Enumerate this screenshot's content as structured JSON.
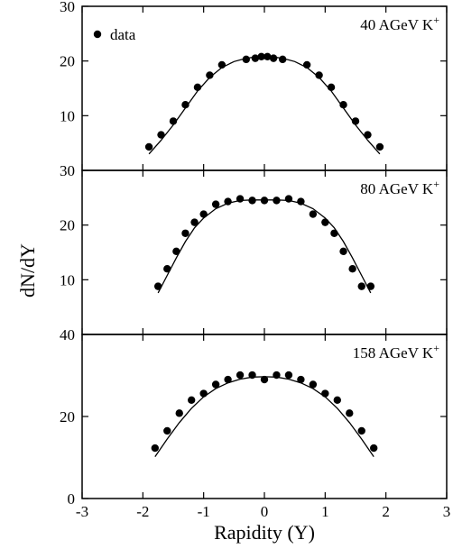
{
  "chart_data": {
    "type": "scatter",
    "xlabel": "Rapidity (Y)",
    "ylabel": "dN/dY",
    "xlim": [
      -3,
      3
    ],
    "x_ticks": [
      -3,
      -2,
      -1,
      0,
      1,
      2,
      3
    ],
    "grid": false,
    "legend": {
      "position": "top-left",
      "entries": [
        {
          "label": "data",
          "marker": "filled-circle"
        }
      ]
    },
    "panels": [
      {
        "label": "40 AGeV K",
        "label_sup": "+",
        "ylim": [
          0,
          30
        ],
        "y_ticks": [
          10,
          20,
          30
        ],
        "series": [
          {
            "kind": "points",
            "x": [
              -1.9,
              -1.7,
              -1.5,
              -1.3,
              -1.1,
              -0.9,
              -0.7,
              -0.3,
              -0.15,
              -0.05,
              0.05,
              0.15,
              0.3,
              0.7,
              0.9,
              1.1,
              1.3,
              1.5,
              1.7,
              1.9
            ],
            "y": [
              4.3,
              6.5,
              9.0,
              12.0,
              15.2,
              17.4,
              19.3,
              20.3,
              20.5,
              20.8,
              20.8,
              20.5,
              20.3,
              19.3,
              17.4,
              15.2,
              12.0,
              9.0,
              6.5,
              4.3
            ]
          },
          {
            "kind": "line",
            "x": [
              -1.9,
              -1.7,
              -1.5,
              -1.3,
              -1.1,
              -0.9,
              -0.7,
              -0.5,
              -0.3,
              -0.1,
              0.0,
              0.1,
              0.3,
              0.5,
              0.7,
              0.9,
              1.1,
              1.3,
              1.5,
              1.7,
              1.9
            ],
            "y": [
              3.0,
              5.5,
              8.3,
              11.4,
              14.5,
              17.0,
              18.8,
              19.9,
              20.5,
              20.8,
              20.8,
              20.8,
              20.5,
              19.9,
              18.8,
              17.0,
              14.5,
              11.4,
              8.3,
              5.5,
              3.0
            ]
          }
        ]
      },
      {
        "label": "80 AGeV K",
        "label_sup": "+",
        "ylim": [
          0,
          30
        ],
        "y_ticks": [
          10,
          20,
          30
        ],
        "series": [
          {
            "kind": "points",
            "x": [
              -1.75,
              -1.6,
              -1.45,
              -1.3,
              -1.15,
              -1.0,
              -0.8,
              -0.6,
              -0.4,
              -0.2,
              0.0,
              0.2,
              0.4,
              0.6,
              0.8,
              1.0,
              1.15,
              1.3,
              1.45,
              1.6,
              1.75
            ],
            "y": [
              8.8,
              12.0,
              15.2,
              18.5,
              20.5,
              22.0,
              23.8,
              24.3,
              24.8,
              24.5,
              24.5,
              24.5,
              24.8,
              24.3,
              22.0,
              20.5,
              18.5,
              15.2,
              12.0,
              8.8,
              8.8
            ]
          },
          {
            "kind": "line",
            "x": [
              -1.75,
              -1.6,
              -1.45,
              -1.3,
              -1.15,
              -1.0,
              -0.8,
              -0.6,
              -0.4,
              -0.2,
              0.0,
              0.2,
              0.4,
              0.6,
              0.8,
              1.0,
              1.15,
              1.3,
              1.45,
              1.6,
              1.75
            ],
            "y": [
              7.6,
              10.8,
              14.0,
              17.0,
              19.5,
              21.3,
              23.0,
              24.0,
              24.5,
              24.6,
              24.6,
              24.6,
              24.5,
              24.0,
              23.0,
              21.3,
              19.5,
              17.0,
              14.0,
              10.8,
              7.6
            ]
          }
        ]
      },
      {
        "label": "158 AGeV K",
        "label_sup": "+",
        "ylim": [
          0,
          40
        ],
        "y_ticks": [
          0,
          20,
          40
        ],
        "series": [
          {
            "kind": "points",
            "x": [
              -1.8,
              -1.6,
              -1.4,
              -1.2,
              -1.0,
              -0.8,
              -0.6,
              -0.4,
              -0.2,
              0.0,
              0.2,
              0.4,
              0.6,
              0.8,
              1.0,
              1.2,
              1.4,
              1.6,
              1.8
            ],
            "y": [
              12.3,
              16.5,
              20.8,
              24.0,
              25.6,
              27.8,
              29.0,
              30.1,
              30.1,
              29.0,
              30.1,
              30.1,
              29.0,
              27.8,
              25.6,
              24.0,
              20.8,
              16.5,
              12.3
            ]
          },
          {
            "kind": "line",
            "x": [
              -1.8,
              -1.6,
              -1.4,
              -1.2,
              -1.0,
              -0.8,
              -0.6,
              -0.4,
              -0.2,
              0.0,
              0.2,
              0.4,
              0.6,
              0.8,
              1.0,
              1.2,
              1.4,
              1.6,
              1.8
            ],
            "y": [
              10.2,
              14.5,
              18.5,
              22.0,
              24.8,
              26.8,
              28.2,
              29.1,
              29.6,
              29.7,
              29.6,
              29.1,
              28.2,
              26.8,
              24.8,
              22.0,
              18.5,
              14.5,
              10.2
            ]
          }
        ]
      }
    ]
  }
}
